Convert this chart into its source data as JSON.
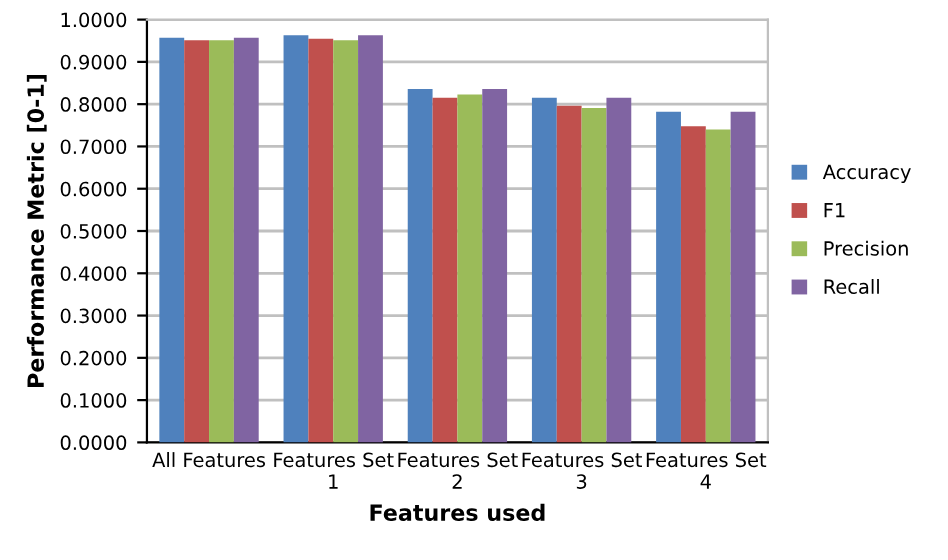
{
  "chart_data": {
    "type": "bar",
    "xlabel": "Features used",
    "ylabel": "Performance Metric [0-1]",
    "categories": [
      "All Features",
      "Features Set\n1",
      "Features Set\n2",
      "Features Set\n3",
      "Features Set\n4"
    ],
    "series": [
      {
        "name": "Accuracy",
        "color": "#4f81bd",
        "values": [
          0.957,
          0.963,
          0.836,
          0.815,
          0.782
        ]
      },
      {
        "name": "F1",
        "color": "#c0504d",
        "values": [
          0.951,
          0.955,
          0.815,
          0.796,
          0.748
        ]
      },
      {
        "name": "Precision",
        "color": "#9bbb59",
        "values": [
          0.951,
          0.951,
          0.823,
          0.791,
          0.74
        ]
      },
      {
        "name": "Recall",
        "color": "#8064a2",
        "values": [
          0.957,
          0.963,
          0.836,
          0.815,
          0.782
        ]
      }
    ],
    "ylim": [
      0,
      1
    ],
    "yticks": [
      {
        "value": 0,
        "label": "0.0000"
      },
      {
        "value": 0.1,
        "label": "0.1000"
      },
      {
        "value": 0.2,
        "label": "0.2000"
      },
      {
        "value": 0.3,
        "label": "0.3000"
      },
      {
        "value": 0.4,
        "label": "0.4000"
      },
      {
        "value": 0.5,
        "label": "0.5000"
      },
      {
        "value": 0.6,
        "label": "0.6000"
      },
      {
        "value": 0.7,
        "label": "0.7000"
      },
      {
        "value": 0.8,
        "label": "0.8000"
      },
      {
        "value": 0.9,
        "label": "0.9000"
      },
      {
        "value": 1,
        "label": "1.0000"
      }
    ],
    "grid": "y",
    "legend": "right"
  }
}
